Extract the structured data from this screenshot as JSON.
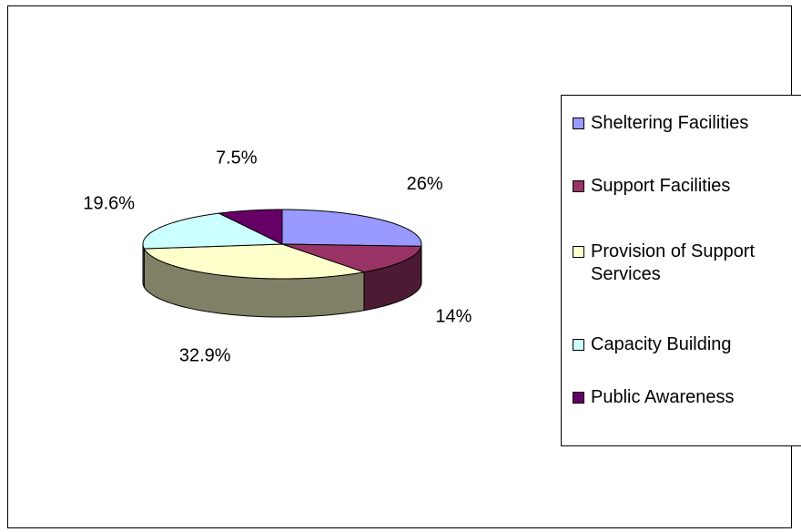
{
  "chart_data": {
    "type": "pie",
    "three_d": true,
    "categories": [
      "Sheltering Facilities",
      "Support Facilities",
      "Provision of Support Services",
      "Capacity Building",
      "Public Awareness"
    ],
    "values": [
      26,
      14,
      32.9,
      19.6,
      7.5
    ],
    "data_labels": [
      "26%",
      "14%",
      "32.9%",
      "19.6%",
      "7.5%"
    ],
    "colors": [
      "#9999ff",
      "#993366",
      "#ffffcc",
      "#ccffff",
      "#660066"
    ],
    "legend_position": "right",
    "title": ""
  }
}
